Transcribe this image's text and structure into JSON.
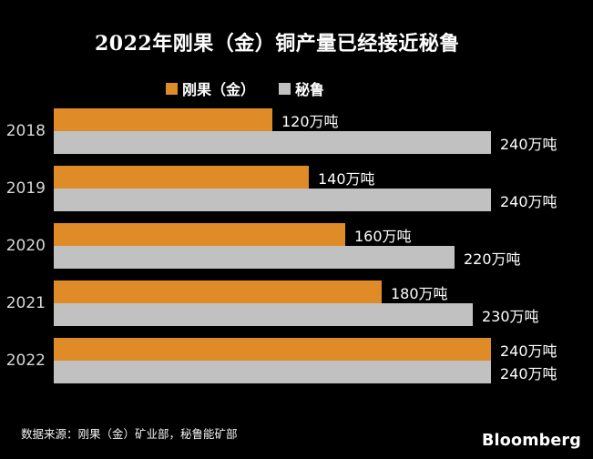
{
  "title": "2022年刚果（金）铜产量已经接近秘鲁",
  "legend": {
    "items": [
      {
        "label": "刚果（金）",
        "color": "#DF8B28"
      },
      {
        "label": "秘鲁",
        "color": "#C1C1C1"
      }
    ]
  },
  "chart_data": {
    "type": "bar",
    "orientation": "horizontal",
    "title": "2022年刚果（金）铜产量已经接近秘鲁",
    "categories": [
      "2018",
      "2019",
      "2020",
      "2021",
      "2022"
    ],
    "series": [
      {
        "name": "刚果（金）",
        "color": "#DF8B28",
        "values": [
          120,
          140,
          160,
          180,
          240
        ],
        "labels": [
          "120万吨",
          "140万吨",
          "160万吨",
          "180万吨",
          "240万吨"
        ]
      },
      {
        "name": "秘鲁",
        "color": "#C1C1C1",
        "values": [
          240,
          240,
          220,
          230,
          240
        ],
        "labels": [
          "240万吨",
          "240万吨",
          "220万吨",
          "230万吨",
          "240万吨"
        ]
      }
    ],
    "unit": "万吨",
    "xlim": [
      0,
      240
    ],
    "grid": false,
    "legend_position": "top",
    "value_labels": "outside-end"
  },
  "source": "数据来源：刚果（金）矿业部，秘鲁能矿部",
  "branding": "Bloomberg",
  "colors": {
    "background": "#000000",
    "congo_orange": "#DF8B28",
    "peru_gray": "#C1C1C1",
    "value_label_text": "#FFFFFF",
    "year_label_text": "#D8D8D8"
  }
}
